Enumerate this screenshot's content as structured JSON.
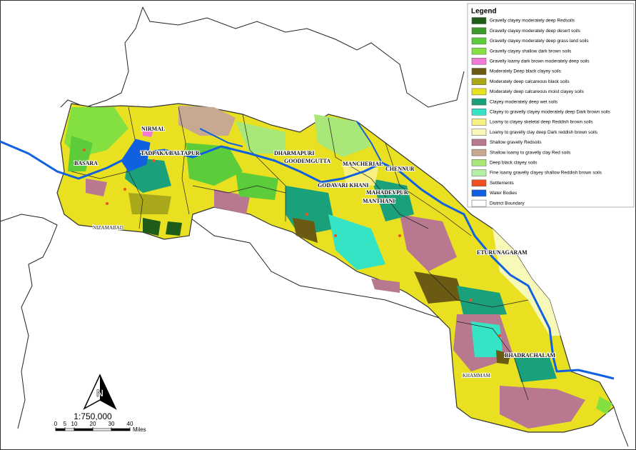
{
  "legend": {
    "title": "Legend",
    "items": [
      {
        "label": "Gravelly clayey moderately deep Redsoils",
        "color": "#1f5c1a"
      },
      {
        "label": "Gravelly clayey moderately deep desert soils",
        "color": "#3c9a2a"
      },
      {
        "label": "Gravelly clayey moderately deep grass land soils",
        "color": "#5ccc3a"
      },
      {
        "label": "Gravelly clayey shallow dark brown soils",
        "color": "#84e040"
      },
      {
        "label": "Gravelly loamy dark brown moderately deep soils",
        "color": "#f07ad6"
      },
      {
        "label": "Moderately Deep black clayey soils",
        "color": "#6b5a12"
      },
      {
        "label": "Moderately deep calcareous black soils",
        "color": "#a8a81a"
      },
      {
        "label": "Moderately deep calcareous moist clayey soils",
        "color": "#e8e020"
      },
      {
        "label": "Clayey moderately deep wet soils",
        "color": "#1aa07a"
      },
      {
        "label": "Clayey to  gravelly clayey  moderately deep Dark brown soils",
        "color": "#34e4c4"
      },
      {
        "label": "Loamy to clayey skeletal deep Reddish brown soils",
        "color": "#f8f080"
      },
      {
        "label": "Loamy to gravelly clay deep Dark reddish brown soils",
        "color": "#f8f8b8"
      },
      {
        "label": "Shallow gravelly Redsoils",
        "color": "#b87890"
      },
      {
        "label": "Shallow loamy to gravelly clay Red soils",
        "color": "#c8a890"
      },
      {
        "label": "Deep black clayey soils",
        "color": "#a8e878"
      },
      {
        "label": "Fine loamy gravelly clayey shallow Reddish brown soils",
        "color": "#b4f0a4"
      },
      {
        "label": "Settlements",
        "color": "#f05020"
      },
      {
        "label": "Water Bodies",
        "color": "#1060e0"
      },
      {
        "label": "District Boundary",
        "color": "#ffffff"
      }
    ]
  },
  "places": {
    "nirmal": "NIRMAL",
    "tadpakal": "TADPAKAL",
    "baltapur": "BALTAPUR",
    "basara": "BASARA",
    "nizamabad": "NIZAMABAD",
    "dharmapuri": "DHARMAPURI",
    "goodemgutta": "GOODEMGUTTA",
    "mancherial": "MANCHERIAL",
    "chennur": "CHENNUR",
    "godavari_khani": "GODAVARI KHANI",
    "mahadevpur": "MAHADEVPUR",
    "manthani": "MANTHANI",
    "eturunagaram": "ETURUNAGARAM",
    "bhadrachalam": "BHADRACHALAM",
    "khammam": "KHAMMAM"
  },
  "scale": {
    "ratio": "1:750,000",
    "ticks": [
      0,
      5,
      10,
      20,
      30,
      40
    ],
    "unit": "Miles"
  }
}
